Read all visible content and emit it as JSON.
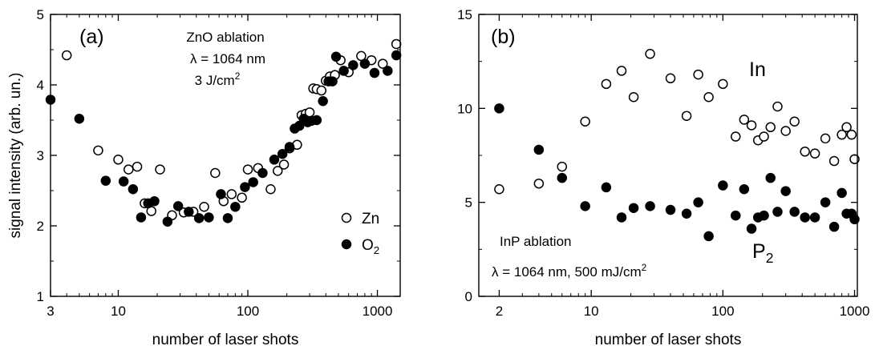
{
  "chart_data": [
    {
      "type": "scatter",
      "panel_label": "(a)",
      "xlabel": "number of laser shots",
      "ylabel": "signal intensity (arb. un.)",
      "xscale": "log",
      "xlim": [
        3,
        1500
      ],
      "ylim": [
        1,
        5
      ],
      "xticks": [
        3,
        10,
        100,
        1000
      ],
      "xtick_labels": [
        "3",
        "10",
        "100",
        "1000"
      ],
      "yticks": [
        1,
        2,
        3,
        4,
        5
      ],
      "ytick_labels": [
        "1",
        "2",
        "3",
        "4",
        "5"
      ],
      "annotations": [
        "ZnO ablation",
        "λ = 1064 nm",
        "3 J/cm²"
      ],
      "legend_position": "bottom-right",
      "series": [
        {
          "name": "Zn",
          "marker": "open-circle",
          "points": [
            [
              4,
              4.42
            ],
            [
              7,
              3.07
            ],
            [
              10,
              2.94
            ],
            [
              12,
              2.8
            ],
            [
              14,
              2.84
            ],
            [
              16,
              2.32
            ],
            [
              18,
              2.21
            ],
            [
              21,
              2.8
            ],
            [
              26,
              2.15
            ],
            [
              32,
              2.19
            ],
            [
              38,
              2.2
            ],
            [
              46,
              2.27
            ],
            [
              56,
              2.75
            ],
            [
              65,
              2.35
            ],
            [
              75,
              2.45
            ],
            [
              90,
              2.4
            ],
            [
              100,
              2.8
            ],
            [
              120,
              2.82
            ],
            [
              150,
              2.52
            ],
            [
              170,
              2.78
            ],
            [
              190,
              2.87
            ],
            [
              210,
              3.1
            ],
            [
              240,
              3.15
            ],
            [
              260,
              3.57
            ],
            [
              280,
              3.59
            ],
            [
              300,
              3.61
            ],
            [
              320,
              3.95
            ],
            [
              340,
              3.94
            ],
            [
              370,
              3.92
            ],
            [
              400,
              4.06
            ],
            [
              430,
              4.12
            ],
            [
              470,
              4.14
            ],
            [
              520,
              4.35
            ],
            [
              600,
              4.18
            ],
            [
              750,
              4.41
            ],
            [
              900,
              4.35
            ],
            [
              1100,
              4.3
            ],
            [
              1400,
              4.58
            ]
          ]
        },
        {
          "name": "O₂",
          "marker": "filled-circle",
          "points": [
            [
              3,
              3.79
            ],
            [
              5,
              3.52
            ],
            [
              8,
              2.64
            ],
            [
              11,
              2.63
            ],
            [
              13,
              2.52
            ],
            [
              15,
              2.12
            ],
            [
              17,
              2.32
            ],
            [
              19,
              2.35
            ],
            [
              24,
              2.06
            ],
            [
              29,
              2.28
            ],
            [
              35,
              2.2
            ],
            [
              42,
              2.11
            ],
            [
              50,
              2.12
            ],
            [
              62,
              2.45
            ],
            [
              70,
              2.11
            ],
            [
              80,
              2.27
            ],
            [
              95,
              2.55
            ],
            [
              110,
              2.62
            ],
            [
              130,
              2.75
            ],
            [
              160,
              2.94
            ],
            [
              185,
              3.02
            ],
            [
              210,
              3.12
            ],
            [
              230,
              3.38
            ],
            [
              250,
              3.42
            ],
            [
              270,
              3.52
            ],
            [
              290,
              3.47
            ],
            [
              310,
              3.49
            ],
            [
              340,
              3.5
            ],
            [
              380,
              3.77
            ],
            [
              420,
              4.05
            ],
            [
              450,
              4.05
            ],
            [
              480,
              4.4
            ],
            [
              550,
              4.2
            ],
            [
              650,
              4.28
            ],
            [
              800,
              4.3
            ],
            [
              950,
              4.17
            ],
            [
              1200,
              4.2
            ],
            [
              1400,
              4.42
            ]
          ]
        }
      ]
    },
    {
      "type": "scatter",
      "panel_label": "(b)",
      "xlabel": "number of laser shots",
      "ylabel": "",
      "xscale": "log",
      "xlim": [
        1.4,
        1050
      ],
      "ylim": [
        0,
        15
      ],
      "xticks": [
        2,
        10,
        100,
        1000
      ],
      "xtick_labels": [
        "2",
        "10",
        "100",
        "1000"
      ],
      "yticks": [
        0,
        5,
        10,
        15
      ],
      "ytick_labels": [
        "0",
        "5",
        "10",
        "15"
      ],
      "annotations": [
        "InP ablation",
        "λ = 1064 nm, 500 mJ/cm²"
      ],
      "series": [
        {
          "name": "In",
          "marker": "open-circle",
          "points": [
            [
              2,
              5.7
            ],
            [
              4,
              6
            ],
            [
              6,
              6.9
            ],
            [
              9,
              9.3
            ],
            [
              13,
              11.3
            ],
            [
              17,
              12
            ],
            [
              21,
              10.6
            ],
            [
              28,
              12.9
            ],
            [
              40,
              11.6
            ],
            [
              53,
              9.6
            ],
            [
              65,
              11.8
            ],
            [
              78,
              10.6
            ],
            [
              100,
              11.3
            ],
            [
              125,
              8.5
            ],
            [
              145,
              9.4
            ],
            [
              165,
              9.1
            ],
            [
              185,
              8.3
            ],
            [
              205,
              8.5
            ],
            [
              230,
              9
            ],
            [
              260,
              10.1
            ],
            [
              300,
              8.8
            ],
            [
              350,
              9.3
            ],
            [
              420,
              7.7
            ],
            [
              500,
              7.6
            ],
            [
              600,
              8.4
            ],
            [
              700,
              7.2
            ],
            [
              800,
              8.6
            ],
            [
              870,
              9
            ],
            [
              950,
              8.6
            ],
            [
              1000,
              7.3
            ]
          ]
        },
        {
          "name": "P₂",
          "marker": "filled-circle",
          "points": [
            [
              2,
              10
            ],
            [
              4,
              7.8
            ],
            [
              6,
              6.3
            ],
            [
              9,
              4.8
            ],
            [
              13,
              5.8
            ],
            [
              17,
              4.2
            ],
            [
              21,
              4.7
            ],
            [
              28,
              4.8
            ],
            [
              40,
              4.6
            ],
            [
              53,
              4.4
            ],
            [
              65,
              5
            ],
            [
              78,
              3.2
            ],
            [
              100,
              5.9
            ],
            [
              125,
              4.3
            ],
            [
              145,
              5.7
            ],
            [
              165,
              3.6
            ],
            [
              185,
              4.2
            ],
            [
              205,
              4.3
            ],
            [
              230,
              6.3
            ],
            [
              260,
              4.5
            ],
            [
              300,
              5.6
            ],
            [
              350,
              4.5
            ],
            [
              420,
              4.2
            ],
            [
              500,
              4.2
            ],
            [
              600,
              5
            ],
            [
              700,
              3.7
            ],
            [
              800,
              5.5
            ],
            [
              870,
              4.4
            ],
            [
              950,
              4.4
            ],
            [
              1000,
              4.1
            ]
          ]
        }
      ]
    }
  ]
}
